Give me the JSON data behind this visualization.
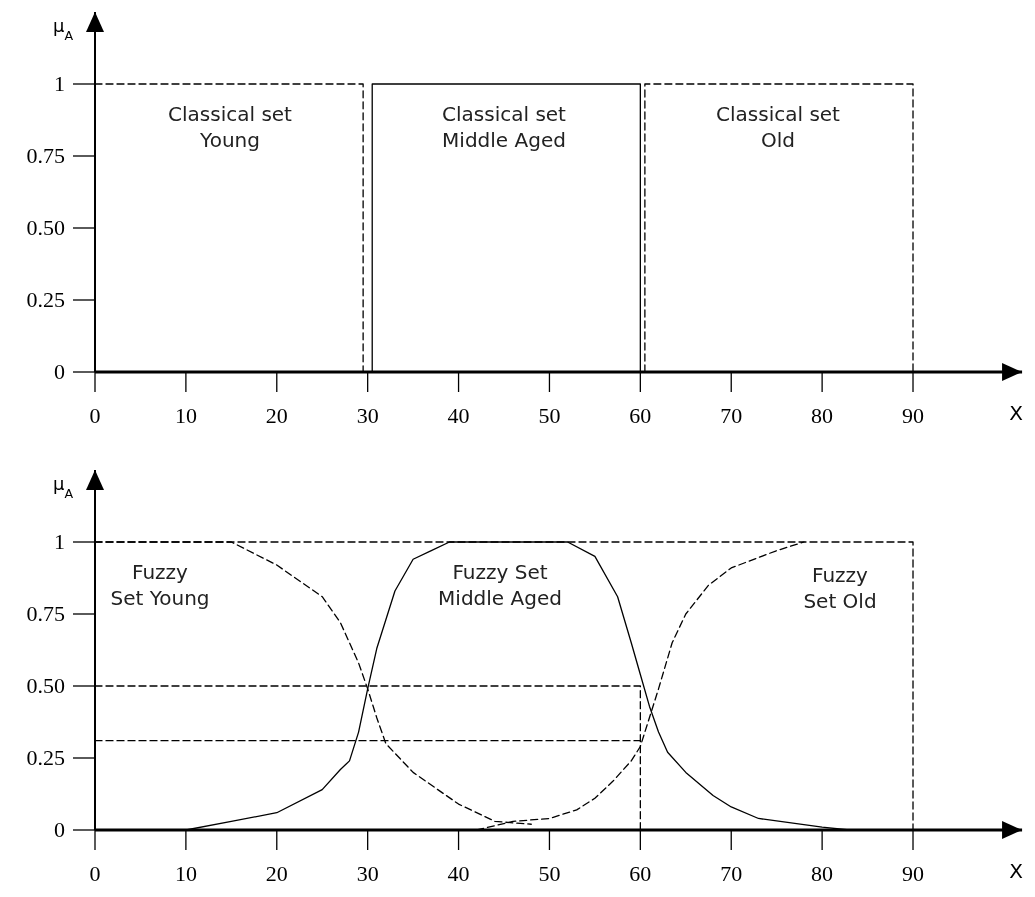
{
  "chart_data": [
    {
      "type": "line",
      "xlabel": "X",
      "ylabel": "μ$_{A}$",
      "xlim": [
        0,
        102
      ],
      "ylim": [
        0,
        1.25
      ],
      "xticks": [
        0,
        10,
        20,
        30,
        40,
        50,
        60,
        70,
        80,
        90
      ],
      "yticks": [
        0,
        0.25,
        {
          "value": 0.5,
          "label": "0.50"
        },
        0.75,
        1
      ],
      "series": [
        {
          "color": "#000000",
          "line_style": "dashed",
          "x": [
            0,
            29.5,
            29.5
          ],
          "values": [
            1,
            1,
            0
          ]
        },
        {
          "color": "#000000",
          "line_style": "solid",
          "x": [
            30.5,
            30.5,
            60,
            60
          ],
          "values": [
            0,
            1,
            1,
            0
          ]
        },
        {
          "color": "#000000",
          "line_style": "dashed",
          "x": [
            60.5,
            60.5,
            90,
            90
          ],
          "values": [
            0,
            1,
            1,
            0
          ]
        }
      ],
      "annotations": [
        "Classical set\nYoung",
        "Classical set\nMiddle Aged",
        "Classical set\nOld"
      ]
    },
    {
      "type": "line",
      "xlabel": "X",
      "ylabel": "μ$_{A}$",
      "xlim": [
        0,
        102
      ],
      "ylim": [
        0,
        1.25
      ],
      "xticks": [
        0,
        10,
        20,
        30,
        40,
        50,
        60,
        70,
        80,
        90
      ],
      "yticks": [
        0,
        0.25,
        {
          "value": 0.5,
          "label": "0.50"
        },
        0.75,
        1
      ],
      "series": [
        {
          "color": "#000000",
          "line_style": "dashed",
          "x": [
            0,
            90,
            90
          ],
          "values": [
            1,
            1,
            0
          ]
        },
        {
          "color": "#000000",
          "line_style": "dashed",
          "x": [
            0,
            15,
            20,
            25,
            27,
            29,
            30,
            31,
            32,
            35,
            40,
            44,
            48
          ],
          "values": [
            1,
            1,
            0.92,
            0.81,
            0.72,
            0.58,
            0.49,
            0.39,
            0.3,
            0.2,
            0.09,
            0.03,
            0.02
          ]
        },
        {
          "color": "#000000",
          "line_style": "solid",
          "x": [
            10,
            15,
            20,
            25,
            27,
            28,
            29,
            30,
            31,
            32,
            33,
            35,
            37,
            39,
            52,
            55,
            57.5,
            59,
            60,
            61,
            62,
            63,
            65,
            68,
            70,
            73,
            80,
            83
          ],
          "values": [
            0,
            0.03,
            0.06,
            0.14,
            0.21,
            0.24,
            0.34,
            0.49,
            0.63,
            0.73,
            0.83,
            0.94,
            0.97,
            1,
            1,
            0.95,
            0.81,
            0.65,
            0.54,
            0.43,
            0.34,
            0.27,
            0.2,
            0.12,
            0.08,
            0.04,
            0.01,
            0
          ]
        },
        {
          "color": "#000000",
          "line_style": "dashed",
          "x": [
            42,
            46,
            50,
            53,
            55,
            57,
            59,
            60,
            62,
            63.5,
            65,
            67.5,
            70,
            75,
            78
          ],
          "values": [
            0,
            0.03,
            0.04,
            0.07,
            0.11,
            0.17,
            0.24,
            0.29,
            0.49,
            0.65,
            0.75,
            0.85,
            0.91,
            0.97,
            1
          ]
        },
        {
          "color": "#000000",
          "line_style": "dashed",
          "x": [
            0,
            60,
            60
          ],
          "values": [
            0.5,
            0.5,
            0
          ]
        },
        {
          "color": "#000000",
          "line_style": "dashed",
          "x": [
            0,
            60
          ],
          "values": [
            0.31,
            0.31
          ]
        }
      ],
      "annotations": [
        "Fuzzy\nSet Young",
        "Fuzzy Set\nMiddle Aged",
        "Fuzzy\nSet Old"
      ]
    }
  ]
}
